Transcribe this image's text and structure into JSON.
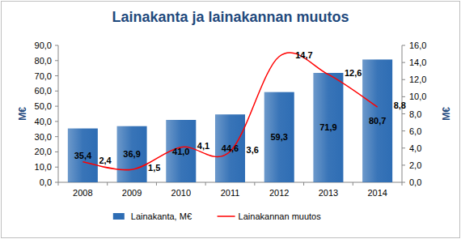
{
  "chart_data": {
    "type": "bar",
    "title": "Lainakanta ja lainakannan muutos",
    "y_label": "M€",
    "y2_label": "M€",
    "categories": [
      "2008",
      "2009",
      "2010",
      "2011",
      "2012",
      "2013",
      "2014"
    ],
    "series": [
      {
        "name": "Lainakanta, M€",
        "type": "bar",
        "color": "#2e6db4",
        "values": [
          35.4,
          36.9,
          41.0,
          44.6,
          59.3,
          71.9,
          80.7
        ],
        "value_labels": [
          "35,4",
          "36,9",
          "41,0",
          "44,6",
          "59,3",
          "71,9",
          "80,7"
        ]
      },
      {
        "name": "Lainakannan muutos",
        "type": "line",
        "axis": "y2",
        "color": "#ff0000",
        "line_style": "smooth",
        "values": [
          2.4,
          1.5,
          4.1,
          3.6,
          14.7,
          12.6,
          8.8
        ],
        "value_labels": [
          "2,4",
          "1,5",
          "4,1",
          "3,6",
          "14,7",
          "12,6",
          "8,8"
        ]
      }
    ],
    "ylim": [
      0,
      90
    ],
    "yticks": [
      {
        "value": 0,
        "label": "0,0"
      },
      {
        "value": 10,
        "label": "10,0"
      },
      {
        "value": 20,
        "label": "20,0"
      },
      {
        "value": 30,
        "label": "30,0"
      },
      {
        "value": 40,
        "label": "40,0"
      },
      {
        "value": 50,
        "label": "50,0"
      },
      {
        "value": 60,
        "label": "60,0"
      },
      {
        "value": 70,
        "label": "70,0"
      },
      {
        "value": 80,
        "label": "80,0"
      },
      {
        "value": 90,
        "label": "90,0"
      }
    ],
    "y2lim": [
      0,
      16
    ],
    "y2ticks": [
      {
        "value": 0,
        "label": "0,0"
      },
      {
        "value": 2,
        "label": "2,0"
      },
      {
        "value": 4,
        "label": "4,0"
      },
      {
        "value": 6,
        "label": "6,0"
      },
      {
        "value": 8,
        "label": "8,0"
      },
      {
        "value": 10,
        "label": "10,0"
      },
      {
        "value": 12,
        "label": "12,0"
      },
      {
        "value": 14,
        "label": "14,0"
      },
      {
        "value": 16,
        "label": "16,0"
      }
    ],
    "data_labels": true,
    "legend": "bottom",
    "grid": false
  }
}
